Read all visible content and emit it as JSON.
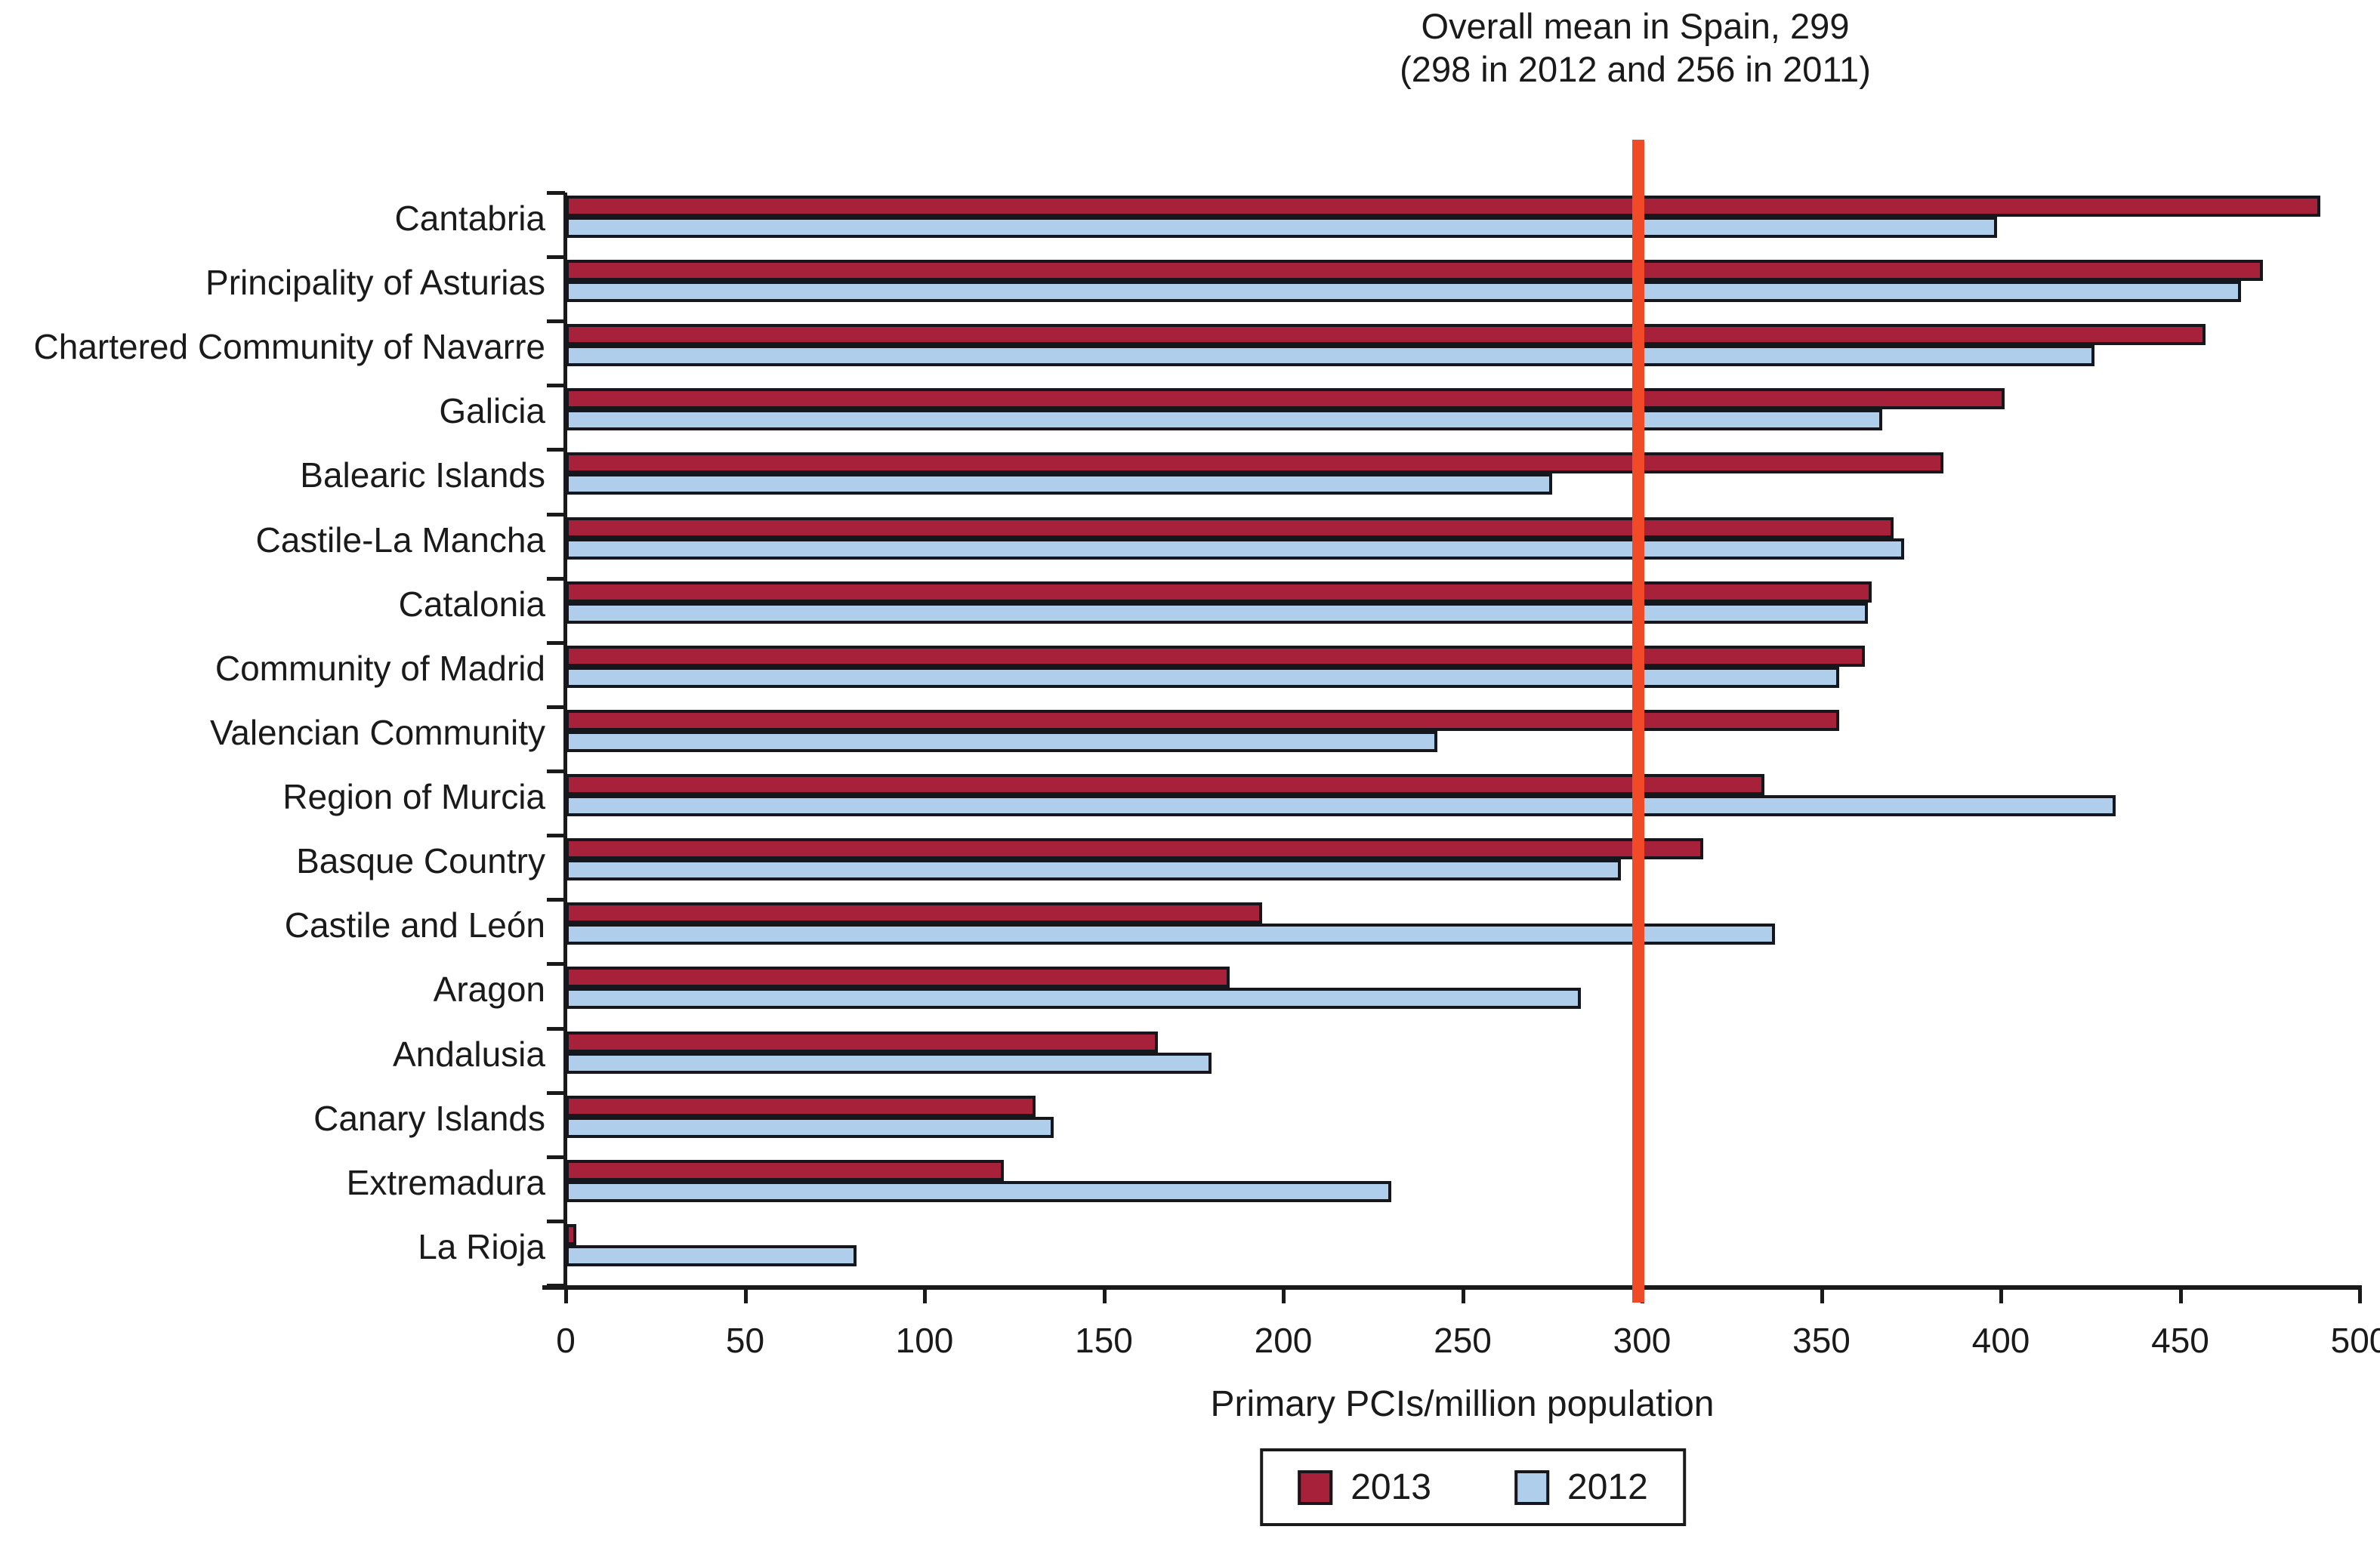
{
  "header": {
    "title": "Overall mean in Spain, 299",
    "subtitle": "(298 in 2012 and 256 in 2011)"
  },
  "colors": {
    "bar_2013": "#a62139",
    "bar_2012": "#afceec",
    "bar_border": "#16161d",
    "mean_line": "#f04a26",
    "axis": "#1a1a1a"
  },
  "legend": {
    "items": [
      {
        "label": "2013",
        "color": "#a62139"
      },
      {
        "label": "2012",
        "color": "#afceec"
      }
    ]
  },
  "chart_data": {
    "type": "bar",
    "orientation": "horizontal",
    "title": "Overall mean in Spain, 299",
    "subtitle": "(298 in 2012 and 256 in 2011)",
    "xlabel": "Primary PCIs/million population",
    "xlim": [
      0,
      500
    ],
    "xticks": [
      0,
      50,
      100,
      150,
      200,
      250,
      300,
      350,
      400,
      450,
      500
    ],
    "grid": false,
    "legend_position": "bottom-center",
    "categories": [
      "Cantabria",
      "Principality of Asturias",
      "Chartered Community of Navarre",
      "Galicia",
      "Balearic Islands",
      "Castile-La Mancha",
      "Catalonia",
      "Community of Madrid",
      "Valencian Community",
      "Region of Murcia",
      "Basque Country",
      "Castile and León",
      "Aragon",
      "Andalusia",
      "Canary Islands",
      "Extremadura",
      "La Rioja"
    ],
    "series": [
      {
        "name": "2013",
        "color": "#a62139",
        "values": [
          489,
          473,
          457,
          401,
          384,
          370,
          364,
          362,
          355,
          334,
          317,
          194,
          185,
          165,
          131,
          122,
          3
        ]
      },
      {
        "name": "2012",
        "color": "#afceec",
        "values": [
          399,
          467,
          426,
          367,
          275,
          373,
          363,
          355,
          243,
          432,
          294,
          337,
          283,
          180,
          136,
          230,
          81
        ]
      }
    ],
    "mean_line": {
      "value": 299,
      "label": "Overall mean in Spain",
      "color": "#f04a26"
    }
  }
}
